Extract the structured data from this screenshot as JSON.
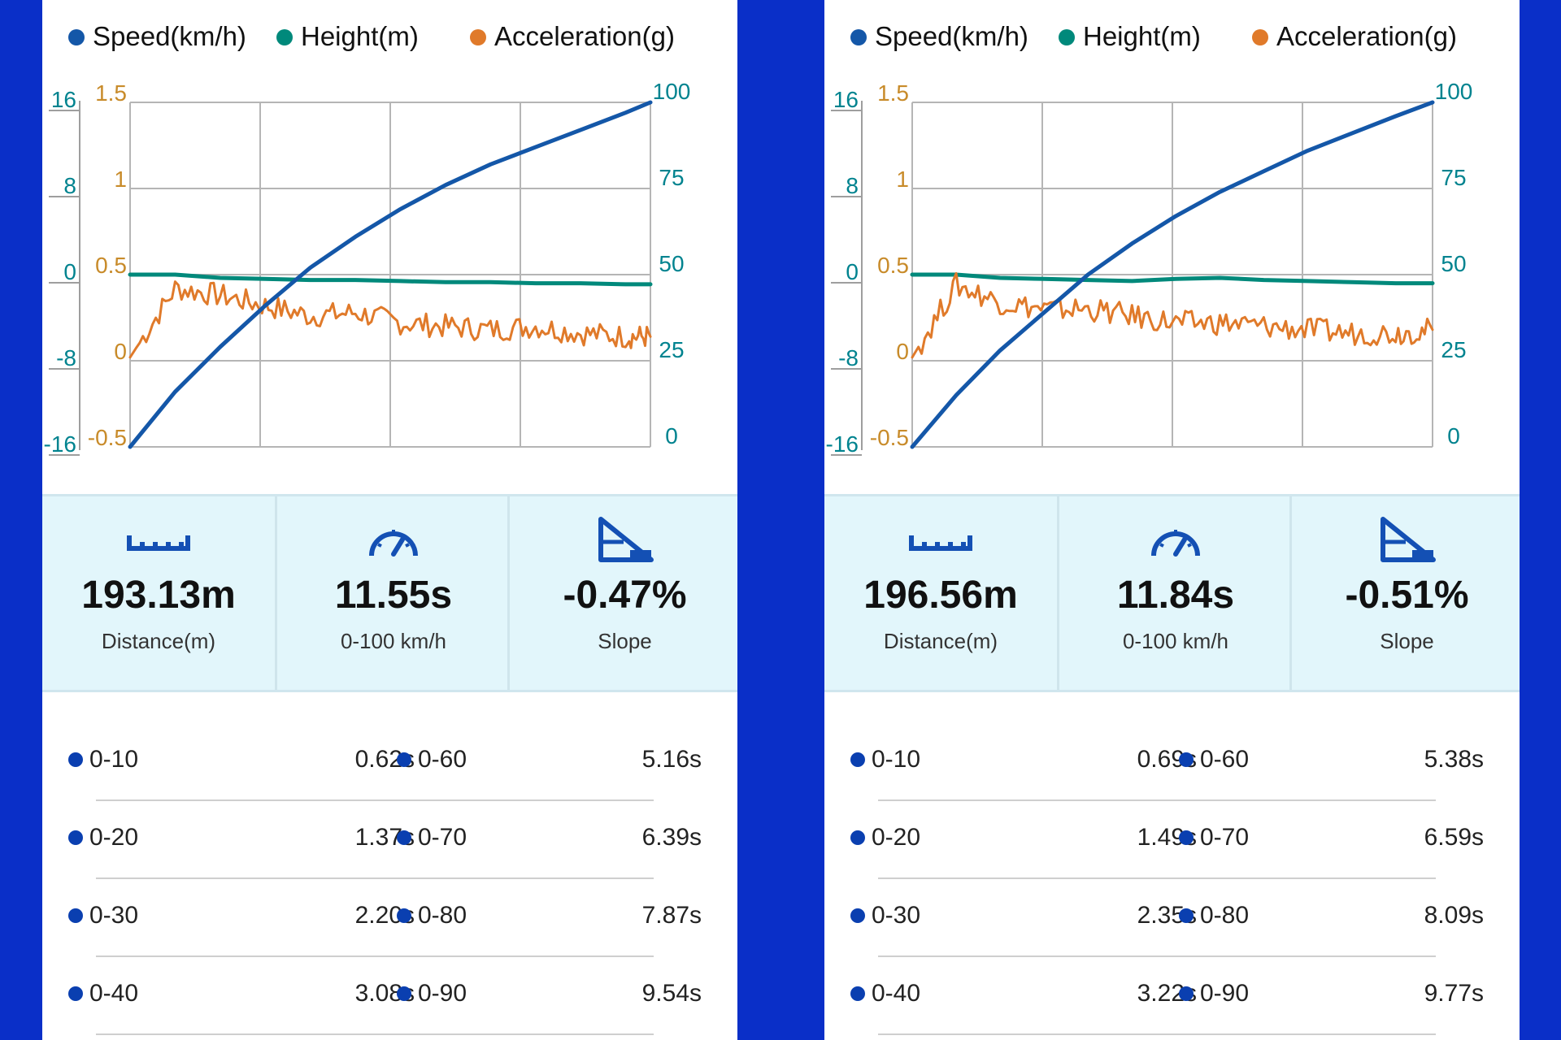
{
  "colors": {
    "speed": "#1457a8",
    "height": "#00897b",
    "acceleration": "#e07a2a",
    "height_axis": "#00838f",
    "accel_axis": "#c88b2a",
    "speed_axis": "#00838f"
  },
  "panels": [
    {
      "legend": {
        "speed": "Speed(km/h)",
        "height": "Height(m)",
        "acceleration": "Acceleration(g)"
      },
      "stats": [
        {
          "icon": "ruler-icon",
          "value": "193.13m",
          "label": "Distance(m)"
        },
        {
          "icon": "speedometer-icon",
          "value": "11.55s",
          "label": "0-100 km/h"
        },
        {
          "icon": "slope-icon",
          "value": "-0.47%",
          "label": "Slope"
        }
      ],
      "splits": [
        {
          "a_label": "0-10",
          "a_time": "0.62s",
          "b_label": "0-60",
          "b_time": "5.16s"
        },
        {
          "a_label": "0-20",
          "a_time": "1.37s",
          "b_label": "0-70",
          "b_time": "6.39s"
        },
        {
          "a_label": "0-30",
          "a_time": "2.20s",
          "b_label": "0-80",
          "b_time": "7.87s"
        },
        {
          "a_label": "0-40",
          "a_time": "3.08s",
          "b_label": "0-90",
          "b_time": "9.54s"
        }
      ]
    },
    {
      "legend": {
        "speed": "Speed(km/h)",
        "height": "Height(m)",
        "acceleration": "Acceleration(g)"
      },
      "stats": [
        {
          "icon": "ruler-icon",
          "value": "196.56m",
          "label": "Distance(m)"
        },
        {
          "icon": "speedometer-icon",
          "value": "11.84s",
          "label": "0-100 km/h"
        },
        {
          "icon": "slope-icon",
          "value": "-0.51%",
          "label": "Slope"
        }
      ],
      "splits": [
        {
          "a_label": "0-10",
          "a_time": "0.69s",
          "b_label": "0-60",
          "b_time": "5.38s"
        },
        {
          "a_label": "0-20",
          "a_time": "1.49s",
          "b_label": "0-70",
          "b_time": "6.59s"
        },
        {
          "a_label": "0-30",
          "a_time": "2.35s",
          "b_label": "0-80",
          "b_time": "8.09s"
        },
        {
          "a_label": "0-40",
          "a_time": "3.22s",
          "b_label": "0-90",
          "b_time": "9.77s"
        }
      ]
    }
  ],
  "chart_data": [
    {
      "type": "line",
      "x": [
        0,
        1,
        2,
        3,
        4,
        5,
        6,
        7,
        8,
        9,
        10,
        11,
        11.55
      ],
      "height_axis_ticks": [
        "16",
        "8",
        "0",
        "-8",
        "-16"
      ],
      "accel_axis_ticks": [
        "1.5",
        "1",
        "0.5",
        "0",
        "-0.5"
      ],
      "speed_axis_ticks": [
        "100",
        "75",
        "50",
        "25",
        "0"
      ],
      "height_ylim": [
        -16,
        16
      ],
      "accel_ylim": [
        -0.5,
        1.5
      ],
      "speed_ylim": [
        0,
        100
      ],
      "series": [
        {
          "name": "Speed(km/h)",
          "axis": "speed",
          "values": [
            0,
            16,
            29,
            41,
            52,
            61,
            69,
            76,
            82,
            87,
            92,
            97,
            100
          ]
        },
        {
          "name": "Height(m)",
          "axis": "height",
          "values": [
            0,
            0,
            -0.3,
            -0.4,
            -0.5,
            -0.5,
            -0.6,
            -0.7,
            -0.7,
            -0.8,
            -0.8,
            -0.9,
            -0.9
          ]
        },
        {
          "name": "Acceleration(g)",
          "axis": "acceleration",
          "values": [
            0.02,
            0.42,
            0.38,
            0.32,
            0.26,
            0.28,
            0.22,
            0.2,
            0.18,
            0.2,
            0.16,
            0.14,
            0.14
          ]
        }
      ],
      "grid": true,
      "legend_position": "top"
    },
    {
      "type": "line",
      "x": [
        0,
        1,
        2,
        3,
        4,
        5,
        6,
        7,
        8,
        9,
        10,
        11,
        11.84
      ],
      "height_axis_ticks": [
        "16",
        "8",
        "0",
        "-8",
        "-16"
      ],
      "accel_axis_ticks": [
        "1.5",
        "1",
        "0.5",
        "0",
        "-0.5"
      ],
      "speed_axis_ticks": [
        "100",
        "75",
        "50",
        "25",
        "0"
      ],
      "height_ylim": [
        -16,
        16
      ],
      "accel_ylim": [
        -0.5,
        1.5
      ],
      "speed_ylim": [
        0,
        100
      ],
      "series": [
        {
          "name": "Speed(km/h)",
          "axis": "speed",
          "values": [
            0,
            15,
            28,
            39,
            50,
            59,
            67,
            74,
            80,
            86,
            91,
            96,
            100
          ]
        },
        {
          "name": "Height(m)",
          "axis": "height",
          "values": [
            0,
            0,
            -0.3,
            -0.4,
            -0.5,
            -0.6,
            -0.4,
            -0.3,
            -0.5,
            -0.6,
            -0.7,
            -0.8,
            -0.8
          ]
        },
        {
          "name": "Acceleration(g)",
          "axis": "acceleration",
          "values": [
            0.02,
            0.44,
            0.34,
            0.3,
            0.3,
            0.26,
            0.22,
            0.22,
            0.2,
            0.18,
            0.16,
            0.16,
            0.18
          ]
        }
      ],
      "grid": true,
      "legend_position": "top"
    }
  ]
}
